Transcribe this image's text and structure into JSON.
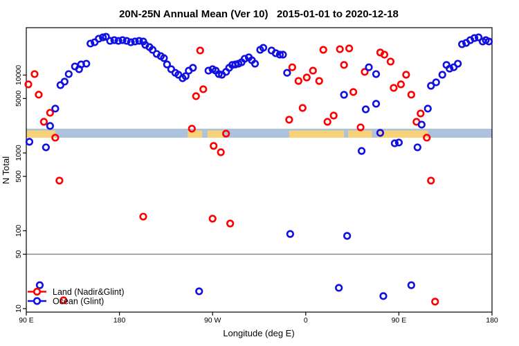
{
  "chart_data": {
    "type": "scatter",
    "title": "20N-25N Annual Mean (Ver 10)   2015-01-01 to 2020-12-18",
    "xlabel": "Longitude (deg E)",
    "ylabel": "N Total",
    "x_axis": {
      "lim": [
        90,
        540
      ],
      "ticks": [
        {
          "lon": 90,
          "label": "90 E"
        },
        {
          "lon": 180,
          "label": "180"
        },
        {
          "lon": 270,
          "label": "90 W"
        },
        {
          "lon": 360,
          "label": "0"
        },
        {
          "lon": 450,
          "label": "90 E"
        },
        {
          "lon": 540,
          "label": "180"
        }
      ]
    },
    "y_axis": {
      "scale": "log",
      "lim": [
        9,
        42000
      ],
      "ticks": [
        {
          "value": 10,
          "label": "10"
        },
        {
          "value": 50,
          "label": "50"
        },
        {
          "value": 100,
          "label": "100"
        },
        {
          "value": 500,
          "label": "500"
        },
        {
          "value": 1000,
          "label": "1000"
        },
        {
          "value": 5000,
          "label": "5000"
        },
        {
          "value": 10000,
          "label": "10000"
        }
      ]
    },
    "reference_line": {
      "value": 50,
      "color": "#8a8a8a"
    },
    "land_ocean_band": {
      "ocean_color": "#adc2dd",
      "land_color": "#f8d278",
      "value_top": 2050,
      "value_bottom": 1570,
      "segments": [
        {
          "start_lon": 90,
          "end_lon": 118,
          "surface": "land"
        },
        {
          "start_lon": 118,
          "end_lon": 246,
          "surface": "ocean"
        },
        {
          "start_lon": 246,
          "end_lon": 260,
          "surface": "land"
        },
        {
          "start_lon": 260,
          "end_lon": 265,
          "surface": "ocean"
        },
        {
          "start_lon": 265,
          "end_lon": 280,
          "surface": "land"
        },
        {
          "start_lon": 280,
          "end_lon": 344,
          "surface": "ocean"
        },
        {
          "start_lon": 344,
          "end_lon": 397,
          "surface": "land"
        },
        {
          "start_lon": 397,
          "end_lon": 401,
          "surface": "ocean"
        },
        {
          "start_lon": 401,
          "end_lon": 424,
          "surface": "land"
        },
        {
          "start_lon": 424,
          "end_lon": 429,
          "surface": "ocean"
        },
        {
          "start_lon": 429,
          "end_lon": 478,
          "surface": "land"
        },
        {
          "start_lon": 478,
          "end_lon": 540,
          "surface": "ocean"
        }
      ]
    },
    "legend": {
      "position": "bottom-left",
      "items": [
        {
          "label": "Land (Nadir&Glint)",
          "color": "#ff0000"
        },
        {
          "label": "Ocean (Glint)",
          "color": "#1010e0"
        }
      ]
    },
    "series": [
      {
        "name": "Land (Nadir&Glint)",
        "color": "#ff0000",
        "points": [
          [
            92,
            7600
          ],
          [
            98,
            10300
          ],
          [
            102,
            5600
          ],
          [
            107,
            2510
          ],
          [
            113,
            3280
          ],
          [
            118,
            1570
          ],
          [
            122,
            441
          ],
          [
            126,
            12.8
          ],
          [
            203,
            152
          ],
          [
            250,
            2050
          ],
          [
            254,
            5360
          ],
          [
            258,
            20700
          ],
          [
            261,
            6580
          ],
          [
            270,
            143
          ],
          [
            271,
            1230
          ],
          [
            278,
            1020
          ],
          [
            283,
            1770
          ],
          [
            287,
            124
          ],
          [
            344,
            2670
          ],
          [
            347,
            12600
          ],
          [
            353,
            8400
          ],
          [
            357,
            3780
          ],
          [
            361,
            9310
          ],
          [
            367,
            11400
          ],
          [
            373,
            8400
          ],
          [
            377,
            21100
          ],
          [
            381,
            2510
          ],
          [
            387,
            3020
          ],
          [
            393,
            21500
          ],
          [
            397,
            13500
          ],
          [
            402,
            22000
          ],
          [
            406,
            6060
          ],
          [
            413,
            2130
          ],
          [
            417,
            11000
          ],
          [
            432,
            19500
          ],
          [
            436,
            18300
          ],
          [
            442,
            14900
          ],
          [
            445,
            6850
          ],
          [
            452,
            7600
          ],
          [
            457,
            10100
          ],
          [
            462,
            5600
          ],
          [
            467,
            2510
          ],
          [
            471,
            3210
          ],
          [
            477,
            1570
          ],
          [
            481,
            441
          ],
          [
            485,
            12.3
          ]
        ]
      },
      {
        "name": "Ocean (Glint)",
        "color": "#1010e0",
        "points": [
          [
            93,
            1390
          ],
          [
            103,
            20
          ],
          [
            109,
            1180
          ],
          [
            113,
            2220
          ],
          [
            118,
            3710
          ],
          [
            123,
            7430
          ],
          [
            127,
            8240
          ],
          [
            131,
            10300
          ],
          [
            137,
            12900
          ],
          [
            141,
            11900
          ],
          [
            143,
            13700
          ],
          [
            148,
            14000
          ],
          [
            152,
            25400
          ],
          [
            156,
            26400
          ],
          [
            160,
            29300
          ],
          [
            164,
            30500
          ],
          [
            167,
            31100
          ],
          [
            171,
            27500
          ],
          [
            175,
            28100
          ],
          [
            179,
            27500
          ],
          [
            183,
            28100
          ],
          [
            187,
            27500
          ],
          [
            191,
            26400
          ],
          [
            195,
            27000
          ],
          [
            199,
            27500
          ],
          [
            203,
            27000
          ],
          [
            205,
            24400
          ],
          [
            209,
            22900
          ],
          [
            212,
            21100
          ],
          [
            216,
            18700
          ],
          [
            220,
            17500
          ],
          [
            223,
            16500
          ],
          [
            226,
            13700
          ],
          [
            230,
            11900
          ],
          [
            234,
            10700
          ],
          [
            237,
            10100
          ],
          [
            241,
            9120
          ],
          [
            244,
            9700
          ],
          [
            247,
            11400
          ],
          [
            251,
            12400
          ],
          [
            257,
            16.7
          ],
          [
            266,
            11400
          ],
          [
            270,
            11900
          ],
          [
            273,
            11400
          ],
          [
            276,
            10300
          ],
          [
            279,
            10100
          ],
          [
            283,
            11000
          ],
          [
            286,
            12400
          ],
          [
            289,
            13500
          ],
          [
            292,
            13700
          ],
          [
            295,
            14000
          ],
          [
            298,
            14600
          ],
          [
            301,
            16200
          ],
          [
            305,
            16900
          ],
          [
            308,
            15500
          ],
          [
            311,
            14000
          ],
          [
            316,
            21100
          ],
          [
            319,
            22400
          ],
          [
            327,
            20700
          ],
          [
            331,
            19100
          ],
          [
            335,
            18300
          ],
          [
            338,
            18300
          ],
          [
            342,
            10700
          ],
          [
            345,
            91
          ],
          [
            392,
            18.5
          ],
          [
            397,
            5580
          ],
          [
            400,
            86
          ],
          [
            414,
            1060
          ],
          [
            418,
            3630
          ],
          [
            421,
            12600
          ],
          [
            428,
            10300
          ],
          [
            428,
            4280
          ],
          [
            432,
            1810
          ],
          [
            435,
            14.5
          ],
          [
            446,
            1330
          ],
          [
            450,
            1360
          ],
          [
            462,
            20
          ],
          [
            468,
            1180
          ],
          [
            472,
            2310
          ],
          [
            478,
            3710
          ],
          [
            481,
            7280
          ],
          [
            486,
            8070
          ],
          [
            492,
            10100
          ],
          [
            496,
            13500
          ],
          [
            499,
            12100
          ],
          [
            503,
            12600
          ],
          [
            507,
            14000
          ],
          [
            511,
            24900
          ],
          [
            515,
            25900
          ],
          [
            519,
            28100
          ],
          [
            523,
            29900
          ],
          [
            527,
            30500
          ],
          [
            531,
            27000
          ],
          [
            534,
            28100
          ],
          [
            537,
            27000
          ]
        ]
      }
    ]
  }
}
